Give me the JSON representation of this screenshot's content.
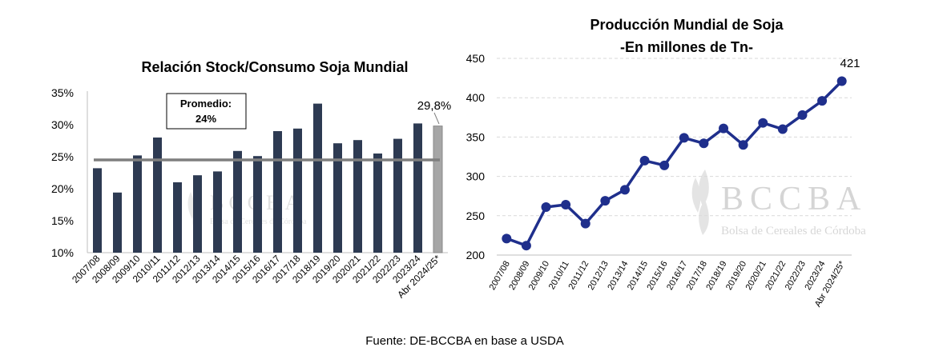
{
  "source": "Fuente: DE-BCCBA en base a USDA",
  "watermark": {
    "logo_text": "BCCBA",
    "logo_subtitle": "Bolsa de Cereales de Córdoba"
  },
  "chart_data": [
    {
      "type": "bar",
      "title": "Relación Stock/Consumo Soja Mundial",
      "categories": [
        "2007/08",
        "2008/09",
        "2009/10",
        "2010/11",
        "2011/12",
        "2012/13",
        "2013/14",
        "2014/15",
        "2015/16",
        "2016/17",
        "2017/18",
        "2018/19",
        "2019/20",
        "2020/21",
        "2021/22",
        "2022/23",
        "2023/24",
        "Abr 2024/25*"
      ],
      "values": [
        23.2,
        19.4,
        25.2,
        28.0,
        21.0,
        22.1,
        22.7,
        25.9,
        25.1,
        29.0,
        29.4,
        33.3,
        27.1,
        27.6,
        25.5,
        27.8,
        30.2,
        29.8
      ],
      "highlight_index": 17,
      "highlight_label": "29,8%",
      "yticks": [
        "35%",
        "30%",
        "25%",
        "20%",
        "15%",
        "10%"
      ],
      "ylim": [
        10,
        35
      ],
      "average": {
        "value": 24.5,
        "label_line1": "Promedio:",
        "label_line2": "24%"
      },
      "colors": {
        "bar": "#2d3a52",
        "highlight": "#a6a6a6",
        "average_line": "#7f7f7f"
      }
    },
    {
      "type": "line",
      "title_line1": "Producción Mundial de Soja",
      "title_line2": "-En millones de Tn-",
      "categories": [
        "2007/08",
        "2008/09",
        "2009/10",
        "2010/11",
        "2011/12",
        "2012/13",
        "2013/14",
        "2014/15",
        "2015/16",
        "2016/17",
        "2017/18",
        "2018/19",
        "2019/20",
        "2020/21",
        "2021/22",
        "2022/23",
        "2023/24",
        "Abr 2024/25*"
      ],
      "values": [
        221,
        212,
        261,
        264,
        240,
        269,
        283,
        320,
        314,
        349,
        342,
        361,
        340,
        368,
        360,
        378,
        396,
        421
      ],
      "last_label": "421",
      "yticks": [
        "450",
        "400",
        "350",
        "300",
        "250",
        "200"
      ],
      "ylim": [
        200,
        450
      ],
      "grid": true,
      "colors": {
        "line": "#1f2f8c",
        "grid": "#d9d9d9"
      }
    }
  ]
}
